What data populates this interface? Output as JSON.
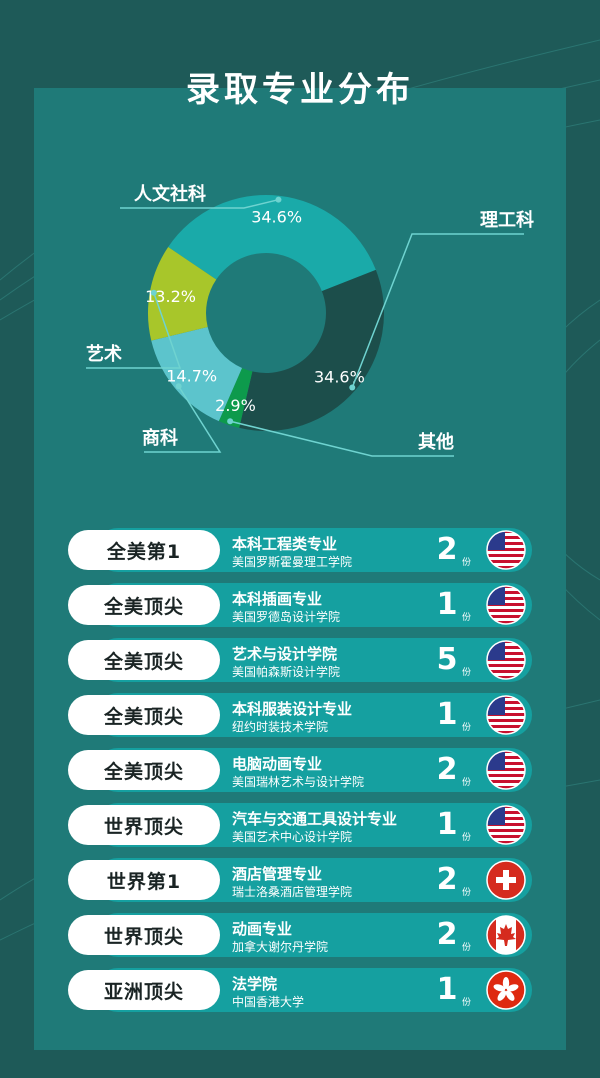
{
  "title": "录取专业分布",
  "chart_data": {
    "type": "pie",
    "title": "录取专业分布",
    "categories": [
      "人文社科",
      "理工科",
      "其他",
      "商科",
      "艺术"
    ],
    "values": [
      34.6,
      34.6,
      2.9,
      14.7,
      13.2
    ],
    "value_labels": [
      "34.6%",
      "34.6%",
      "2.9%",
      "14.7%",
      "13.2%"
    ],
    "colors": [
      "#1aaaa9",
      "#1c4e4b",
      "#0d9a4c",
      "#5cc4cc",
      "#a8c62a"
    ],
    "donut": true
  },
  "unit_label": "份",
  "rows": [
    {
      "rank": "全美第1",
      "major": "本科工程类专业",
      "school": "美国罗斯霍曼理工学院",
      "count": "2",
      "flag": "usa-flag-icon"
    },
    {
      "rank": "全美顶尖",
      "major": "本科插画专业",
      "school": "美国罗德岛设计学院",
      "count": "1",
      "flag": "usa-flag-icon"
    },
    {
      "rank": "全美顶尖",
      "major": "艺术与设计学院",
      "school": "美国帕森斯设计学院",
      "count": "5",
      "flag": "usa-flag-icon"
    },
    {
      "rank": "全美顶尖",
      "major": "本科服装设计专业",
      "school": "纽约时装技术学院",
      "count": "1",
      "flag": "usa-flag-icon"
    },
    {
      "rank": "全美顶尖",
      "major": "电脑动画专业",
      "school": "美国瑞林艺术与设计学院",
      "count": "2",
      "flag": "usa-flag-icon"
    },
    {
      "rank": "世界顶尖",
      "major": "汽车与交通工具设计专业",
      "school": "美国艺术中心设计学院",
      "count": "1",
      "flag": "usa-flag-icon"
    },
    {
      "rank": "世界第1",
      "major": "酒店管理专业",
      "school": "瑞士洛桑酒店管理学院",
      "count": "2",
      "flag": "swiss-flag-icon"
    },
    {
      "rank": "世界顶尖",
      "major": "动画专业",
      "school": "加拿大谢尔丹学院",
      "count": "2",
      "flag": "canada-flag-icon"
    },
    {
      "rank": "亚洲顶尖",
      "major": "法学院",
      "school": "中国香港大学",
      "count": "1",
      "flag": "hongkong-flag-icon"
    }
  ]
}
